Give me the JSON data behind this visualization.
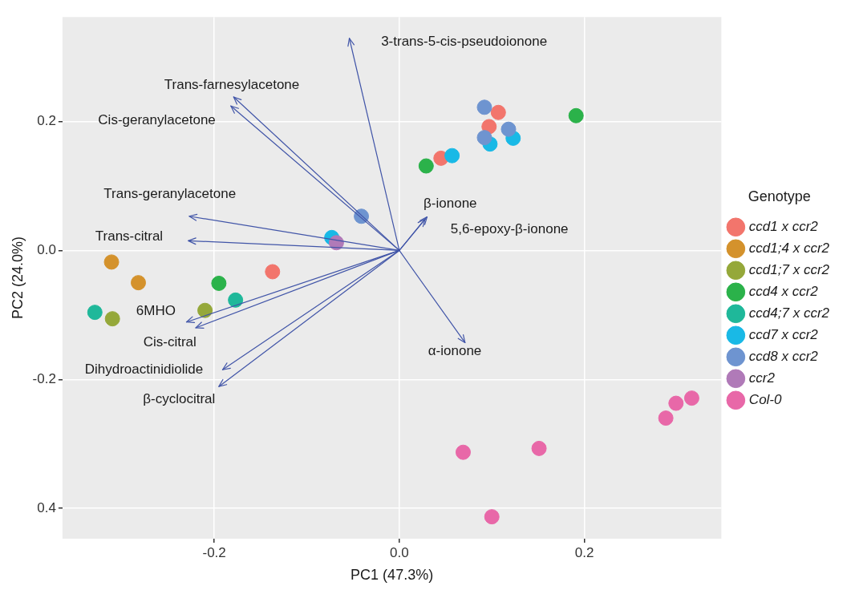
{
  "chart_data": {
    "type": "scatter",
    "xlabel": "PC1 (47.3%)",
    "ylabel": "PC2 (24.0%)",
    "legend_title": "Genotype",
    "legend": "right",
    "grid": true,
    "marker": "circle",
    "xlim": [
      -0.364,
      0.348
    ],
    "ylim": [
      -0.447,
      0.362
    ],
    "xticks": [
      {
        "value": -0.2,
        "label": "-0.2"
      },
      {
        "value": 0,
        "label": "0.0"
      },
      {
        "value": 0.2,
        "label": "0.2"
      }
    ],
    "yticks": [
      {
        "value": -0.4,
        "label": "0.4"
      },
      {
        "value": -0.2,
        "label": "-0.2"
      },
      {
        "value": 0,
        "label": "0.0"
      },
      {
        "value": 0.2,
        "label": "0.2"
      }
    ],
    "series": [
      {
        "name": "ccd1 x ccr2",
        "color": "#f2756c",
        "x": [
          0.107,
          0.097,
          0.045,
          -0.137
        ],
        "values": [
          0.214,
          0.192,
          0.143,
          -0.033
        ]
      },
      {
        "name": "ccd1;4 x ccr2",
        "color": "#d4922c",
        "x": [
          -0.311,
          -0.282
        ],
        "values": [
          -0.018,
          -0.05
        ]
      },
      {
        "name": "ccd1;7 x ccr2",
        "color": "#95a83a",
        "x": [
          -0.31,
          -0.21
        ],
        "values": [
          -0.106,
          -0.093
        ]
      },
      {
        "name": "ccd4 x ccr2",
        "color": "#2bb24a",
        "x": [
          0.191,
          0.029,
          -0.195
        ],
        "values": [
          0.209,
          0.131,
          -0.051
        ]
      },
      {
        "name": "ccd4;7 x ccr2",
        "color": "#1fb89a",
        "x": [
          -0.329,
          -0.177
        ],
        "values": [
          -0.096,
          -0.077
        ]
      },
      {
        "name": "ccd7 x ccr2",
        "color": "#19b9e6",
        "x": [
          0.057,
          0.098,
          0.123,
          -0.073
        ],
        "values": [
          0.147,
          0.165,
          0.174,
          0.02
        ]
      },
      {
        "name": "ccd8 x ccr2",
        "color": "#6e94d0",
        "x": [
          0.092,
          0.118,
          0.092,
          -0.041
        ],
        "values": [
          0.222,
          0.188,
          0.175,
          0.053
        ]
      },
      {
        "name": "ccr2",
        "color": "#b07ab8",
        "x": [
          -0.068
        ],
        "values": [
          0.012
        ]
      },
      {
        "name": "Col-0",
        "color": "#e868a8",
        "x": [
          0.288,
          0.299,
          0.316,
          0.151,
          0.069,
          0.1
        ],
        "values": [
          -0.26,
          -0.237,
          -0.229,
          -0.307,
          -0.313,
          -0.413
        ]
      }
    ],
    "annotations": [
      "3-trans-5-cis-pseudoionone",
      "Trans-farnesylacetone",
      "Cis-geranylacetone",
      "Trans-geranylacetone",
      "Trans-citral",
      "6MHO",
      "Cis-citral",
      "Dihydroactinidiolide",
      "β-cyclocitral",
      "β-ionone",
      "5,6-epoxy-β-ionone",
      "α-ionone"
    ]
  }
}
